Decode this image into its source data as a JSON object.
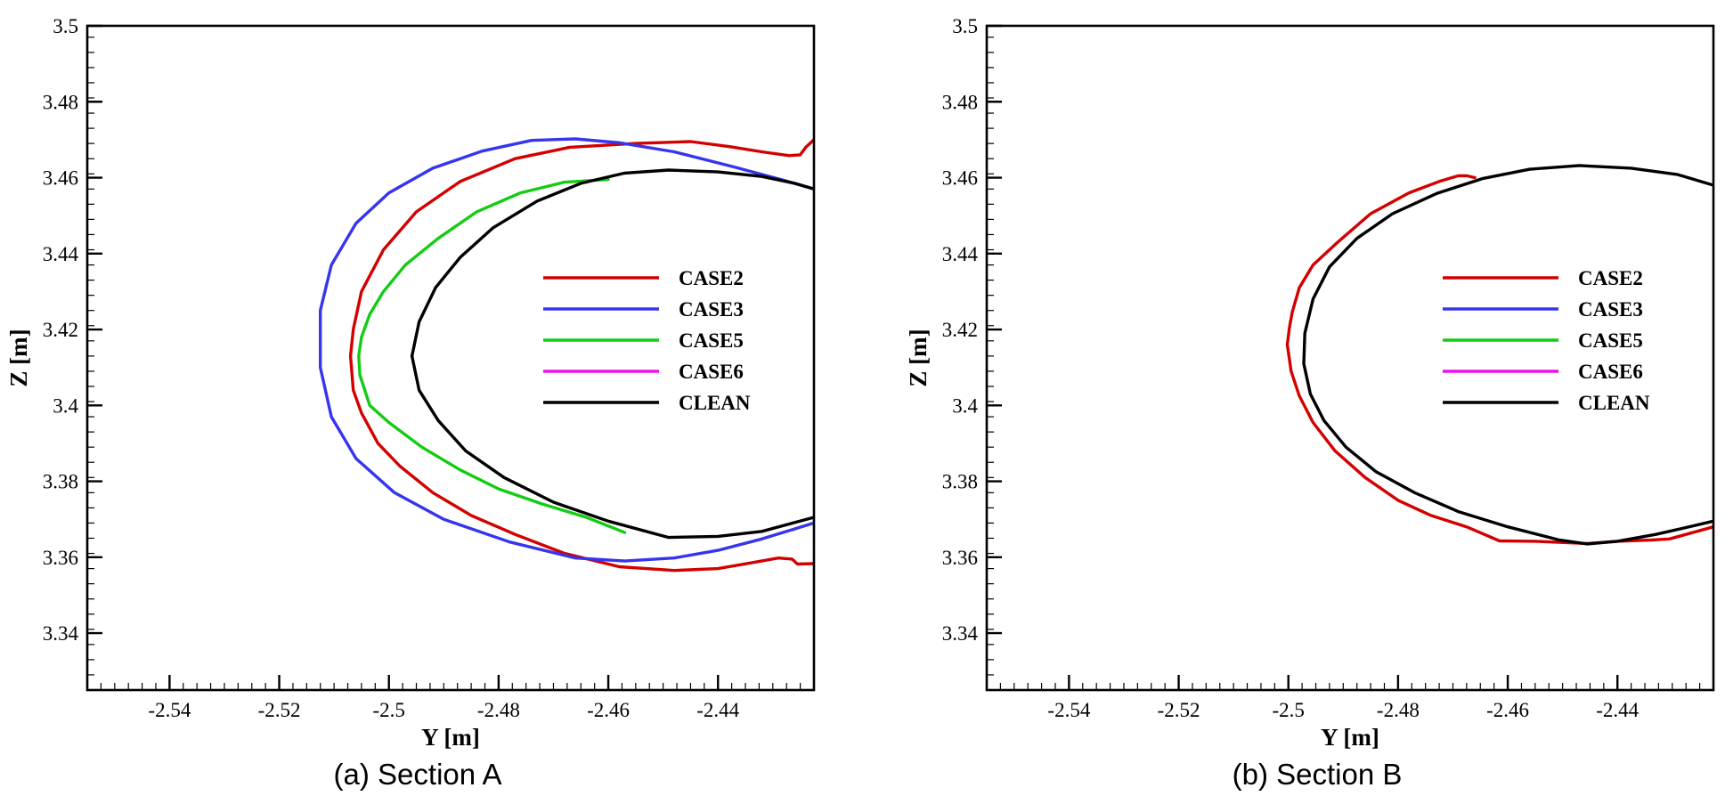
{
  "chart_data": [
    {
      "type": "line",
      "caption": "(a) Section A",
      "xlabel": "Y [m]",
      "ylabel": "Z [m]",
      "xlim": [
        -2.555,
        -2.4225
      ],
      "ylim": [
        3.325,
        3.5
      ],
      "xticks": [
        -2.54,
        -2.52,
        -2.5,
        -2.48,
        -2.46,
        -2.44
      ],
      "xtick_labels": [
        "-2.54",
        "-2.52",
        "-2.5",
        "-2.48",
        "-2.46",
        "-2.44"
      ],
      "yticks": [
        3.34,
        3.36,
        3.38,
        3.4,
        3.42,
        3.44,
        3.46,
        3.48,
        3.5
      ],
      "ytick_labels": [
        "3.34",
        "3.36",
        "3.38",
        "3.4",
        "3.42",
        "3.44",
        "3.46",
        "3.48",
        "3.5"
      ],
      "legend": [
        {
          "name": "CASE2",
          "color": "#d40000"
        },
        {
          "name": "CASE3",
          "color": "#3535ee"
        },
        {
          "name": "CASE5",
          "color": "#13cc13"
        },
        {
          "name": "CASE6",
          "color": "#ee11ee"
        },
        {
          "name": "CLEAN",
          "color": "#000000"
        }
      ],
      "series": [
        {
          "name": "CASE2",
          "color": "#d40000",
          "points": [
            [
              -2.4225,
              3.47
            ],
            [
              -2.424,
              3.468
            ],
            [
              -2.425,
              3.466
            ],
            [
              -2.427,
              3.4658
            ],
            [
              -2.432,
              3.4668
            ],
            [
              -2.438,
              3.4682
            ],
            [
              -2.445,
              3.4695
            ],
            [
              -2.455,
              3.469
            ],
            [
              -2.467,
              3.468
            ],
            [
              -2.477,
              3.465
            ],
            [
              -2.487,
              3.459
            ],
            [
              -2.495,
              3.451
            ],
            [
              -2.501,
              3.441
            ],
            [
              -2.505,
              3.43
            ],
            [
              -2.5065,
              3.42
            ],
            [
              -2.507,
              3.413
            ],
            [
              -2.5065,
              3.404
            ],
            [
              -2.505,
              3.398
            ],
            [
              -2.502,
              3.39
            ],
            [
              -2.498,
              3.384
            ],
            [
              -2.492,
              3.377
            ],
            [
              -2.485,
              3.371
            ],
            [
              -2.477,
              3.366
            ],
            [
              -2.468,
              3.361
            ],
            [
              -2.458,
              3.3575
            ],
            [
              -2.448,
              3.3565
            ],
            [
              -2.44,
              3.357
            ],
            [
              -2.434,
              3.3585
            ],
            [
              -2.429,
              3.3598
            ],
            [
              -2.4265,
              3.3595
            ],
            [
              -2.4255,
              3.3582
            ],
            [
              -2.4225,
              3.3583
            ]
          ]
        },
        {
          "name": "CASE3",
          "color": "#3535ee",
          "points": [
            [
              -2.4225,
              3.457
            ],
            [
              -2.428,
              3.4593
            ],
            [
              -2.437,
              3.4628
            ],
            [
              -2.448,
              3.4668
            ],
            [
              -2.458,
              3.4692
            ],
            [
              -2.466,
              3.4702
            ],
            [
              -2.474,
              3.4698
            ],
            [
              -2.483,
              3.467
            ],
            [
              -2.492,
              3.4625
            ],
            [
              -2.5,
              3.456
            ],
            [
              -2.506,
              3.448
            ],
            [
              -2.5105,
              3.437
            ],
            [
              -2.5125,
              3.425
            ],
            [
              -2.5125,
              3.41
            ],
            [
              -2.5105,
              3.397
            ],
            [
              -2.506,
              3.386
            ],
            [
              -2.499,
              3.377
            ],
            [
              -2.49,
              3.37
            ],
            [
              -2.478,
              3.364
            ],
            [
              -2.466,
              3.3598
            ],
            [
              -2.457,
              3.359
            ],
            [
              -2.448,
              3.3598
            ],
            [
              -2.44,
              3.3618
            ],
            [
              -2.432,
              3.3648
            ],
            [
              -2.4225,
              3.369
            ]
          ]
        },
        {
          "name": "CASE5",
          "color": "#13cc13",
          "points": [
            [
              -2.46,
              3.4595
            ],
            [
              -2.468,
              3.4588
            ],
            [
              -2.476,
              3.456
            ],
            [
              -2.484,
              3.451
            ],
            [
              -2.491,
              3.444
            ],
            [
              -2.497,
              3.437
            ],
            [
              -2.501,
              3.43
            ],
            [
              -2.5035,
              3.424
            ],
            [
              -2.505,
              3.418
            ],
            [
              -2.5055,
              3.413
            ],
            [
              -2.5053,
              3.408
            ],
            [
              -2.5035,
              3.4
            ],
            [
              -2.5,
              3.3955
            ],
            [
              -2.494,
              3.389
            ],
            [
              -2.487,
              3.383
            ],
            [
              -2.48,
              3.378
            ],
            [
              -2.472,
              3.374
            ],
            [
              -2.464,
              3.3705
            ],
            [
              -2.457,
              3.3665
            ]
          ]
        },
        {
          "name": "CASE6",
          "color": "#ee11ee",
          "points": []
        },
        {
          "name": "CLEAN",
          "color": "#000000",
          "points": [
            [
              -2.4225,
              3.457
            ],
            [
              -2.426,
              3.4585
            ],
            [
              -2.432,
              3.4603
            ],
            [
              -2.44,
              3.4615
            ],
            [
              -2.449,
              3.462
            ],
            [
              -2.457,
              3.4612
            ],
            [
              -2.465,
              3.4585
            ],
            [
              -2.473,
              3.4538
            ],
            [
              -2.481,
              3.4468
            ],
            [
              -2.487,
              3.439
            ],
            [
              -2.4915,
              3.431
            ],
            [
              -2.4945,
              3.422
            ],
            [
              -2.4958,
              3.413
            ],
            [
              -2.4945,
              3.404
            ],
            [
              -2.491,
              3.396
            ],
            [
              -2.486,
              3.388
            ],
            [
              -2.479,
              3.381
            ],
            [
              -2.47,
              3.3745
            ],
            [
              -2.46,
              3.3695
            ],
            [
              -2.449,
              3.3652
            ],
            [
              -2.44,
              3.3655
            ],
            [
              -2.432,
              3.3668
            ],
            [
              -2.4225,
              3.3705
            ]
          ]
        }
      ]
    },
    {
      "type": "line",
      "caption": "(b) Section B",
      "xlabel": "Y [m]",
      "ylabel": "Z [m]",
      "xlim": [
        -2.555,
        -2.4225
      ],
      "ylim": [
        3.325,
        3.5
      ],
      "xticks": [
        -2.54,
        -2.52,
        -2.5,
        -2.48,
        -2.46,
        -2.44
      ],
      "xtick_labels": [
        "-2.54",
        "-2.52",
        "-2.5",
        "-2.48",
        "-2.46",
        "-2.44"
      ],
      "yticks": [
        3.34,
        3.36,
        3.38,
        3.4,
        3.42,
        3.44,
        3.46,
        3.48,
        3.5
      ],
      "ytick_labels": [
        "3.34",
        "3.36",
        "3.38",
        "3.4",
        "3.42",
        "3.44",
        "3.46",
        "3.48",
        "3.5"
      ],
      "legend": [
        {
          "name": "CASE2",
          "color": "#d40000"
        },
        {
          "name": "CASE3",
          "color": "#3535ee"
        },
        {
          "name": "CASE5",
          "color": "#13cc13"
        },
        {
          "name": "CASE6",
          "color": "#ee11ee"
        },
        {
          "name": "CLEAN",
          "color": "#000000"
        }
      ],
      "series": [
        {
          "name": "CASE2",
          "color": "#d40000",
          "points": [
            [
              -2.466,
              3.46
            ],
            [
              -2.4675,
              3.4605
            ],
            [
              -2.469,
              3.4605
            ],
            [
              -2.4725,
              3.459
            ],
            [
              -2.478,
              3.456
            ],
            [
              -2.485,
              3.4505
            ],
            [
              -2.491,
              3.443
            ],
            [
              -2.4955,
              3.437
            ],
            [
              -2.498,
              3.431
            ],
            [
              -2.4993,
              3.4245
            ],
            [
              -2.4998,
              3.4205
            ],
            [
              -2.5002,
              3.416
            ],
            [
              -2.4995,
              3.409
            ],
            [
              -2.498,
              3.4025
            ],
            [
              -2.4955,
              3.3955
            ],
            [
              -2.4915,
              3.388
            ],
            [
              -2.486,
              3.381
            ],
            [
              -2.48,
              3.375
            ],
            [
              -2.474,
              3.371
            ],
            [
              -2.4675,
              3.368
            ],
            [
              -2.4615,
              3.3643
            ],
            [
              -2.455,
              3.3642
            ],
            [
              -2.4455,
              3.3636
            ],
            [
              -2.44,
              3.3642
            ],
            [
              -2.434,
              3.3645
            ],
            [
              -2.4305,
              3.3648
            ],
            [
              -2.4275,
              3.366
            ],
            [
              -2.4225,
              3.368
            ]
          ]
        },
        {
          "name": "CASE3",
          "color": "#3535ee",
          "points": []
        },
        {
          "name": "CASE5",
          "color": "#13cc13",
          "points": []
        },
        {
          "name": "CASE6",
          "color": "#ee11ee",
          "points": []
        },
        {
          "name": "CLEAN",
          "color": "#000000",
          "points": [
            [
              -2.4225,
              3.458
            ],
            [
              -2.429,
              3.4608
            ],
            [
              -2.4375,
              3.4625
            ],
            [
              -2.447,
              3.4632
            ],
            [
              -2.456,
              3.4622
            ],
            [
              -2.4645,
              3.4598
            ],
            [
              -2.473,
              3.4558
            ],
            [
              -2.481,
              3.4505
            ],
            [
              -2.4875,
              3.444
            ],
            [
              -2.4925,
              3.4365
            ],
            [
              -2.4955,
              3.428
            ],
            [
              -2.497,
              3.419
            ],
            [
              -2.4972,
              3.411
            ],
            [
              -2.496,
              3.403
            ],
            [
              -2.4935,
              3.396
            ],
            [
              -2.4895,
              3.389
            ],
            [
              -2.484,
              3.3825
            ],
            [
              -2.477,
              3.377
            ],
            [
              -2.469,
              3.372
            ],
            [
              -2.46,
              3.368
            ],
            [
              -2.4505,
              3.3645
            ],
            [
              -2.4455,
              3.3635
            ],
            [
              -2.44,
              3.3642
            ],
            [
              -2.433,
              3.366
            ],
            [
              -2.4275,
              3.3678
            ],
            [
              -2.4225,
              3.3695
            ]
          ]
        }
      ]
    }
  ]
}
